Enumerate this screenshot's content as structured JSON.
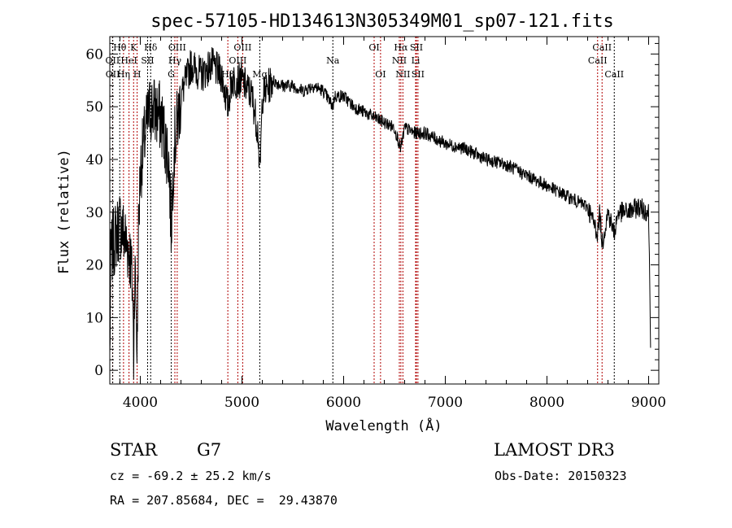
{
  "chart_data": {
    "type": "line",
    "title": "spec-57105-HD134613N305349M01_sp07-121.fits",
    "xlabel": "Wavelength (Å)",
    "ylabel": "Flux (relative)",
    "xlim": [
      3700,
      9100
    ],
    "ylim": [
      -2.6,
      63.3
    ],
    "xticks": [
      4000,
      5000,
      6000,
      7000,
      8000,
      9000
    ],
    "yticks": [
      0,
      10,
      20,
      30,
      40,
      50,
      60
    ],
    "xtick_labels": [
      "4000",
      "5000",
      "6000",
      "7000",
      "8000",
      "9000"
    ],
    "ytick_labels": [
      "0",
      "10",
      "20",
      "30",
      "40",
      "50",
      "60"
    ],
    "grid": false,
    "series": [
      {
        "name": "spectrum",
        "approximate": true,
        "x": [
          3700,
          3710,
          3750,
          3800,
          3850,
          3900,
          3925,
          3934,
          3945,
          3960,
          3969,
          3980,
          4000,
          4050,
          4100,
          4200,
          4280,
          4304,
          4330,
          4400,
          4500,
          4600,
          4700,
          4800,
          4861,
          4900,
          5000,
          5100,
          5160,
          5175,
          5190,
          5200,
          5300,
          5400,
          5500,
          5600,
          5700,
          5800,
          5894,
          5910,
          6000,
          6100,
          6200,
          6300,
          6400,
          6500,
          6563,
          6600,
          6700,
          6800,
          7000,
          7200,
          7400,
          7600,
          7800,
          8000,
          8200,
          8400,
          8498,
          8520,
          8542,
          8600,
          8662,
          8700,
          8800,
          8900,
          9000,
          9020
        ],
        "y": [
          2,
          22,
          25,
          28,
          25,
          22,
          15,
          2,
          20,
          12,
          2,
          25,
          38,
          45,
          50,
          48,
          40,
          27,
          42,
          52,
          58,
          56,
          58,
          56,
          50,
          55,
          55,
          52,
          45,
          36,
          45,
          52,
          55,
          54,
          54,
          53,
          54,
          53,
          50,
          52,
          52,
          50,
          49,
          48,
          47,
          46,
          42,
          46,
          45,
          45,
          43,
          42,
          40,
          39,
          37,
          35,
          33,
          31,
          26,
          30,
          24,
          30,
          26,
          30,
          30,
          31,
          30,
          5
        ]
      }
    ],
    "line_labels": [
      {
        "name": "Hθ",
        "wave": 3798,
        "row": 0,
        "color": "#000000"
      },
      {
        "name": "K",
        "wave": 3934,
        "row": 0,
        "color": "#b00000"
      },
      {
        "name": "Hδ",
        "wave": 4102,
        "row": 0,
        "color": "#000000"
      },
      {
        "name": "OIII",
        "wave": 4363,
        "row": 0,
        "color": "#b00000"
      },
      {
        "name": "OIII",
        "wave": 5007,
        "row": 0,
        "color": "#b00000"
      },
      {
        "name": "OI",
        "wave": 6300,
        "row": 0,
        "color": "#b00000"
      },
      {
        "name": "Hα",
        "wave": 6563,
        "row": 0,
        "color": "#b00000"
      },
      {
        "name": "SII",
        "wave": 6716,
        "row": 0,
        "color": "#b00000"
      },
      {
        "name": "CaII",
        "wave": 8542,
        "row": 0,
        "color": "#b00000"
      },
      {
        "name": "OII",
        "wave": 3727,
        "row": 1,
        "color": "#b00000"
      },
      {
        "name": "HeI",
        "wave": 3889,
        "row": 1,
        "color": "#b00000"
      },
      {
        "name": "SII",
        "wave": 4072,
        "row": 1,
        "color": "#000000"
      },
      {
        "name": "Hγ",
        "wave": 4340,
        "row": 1,
        "color": "#b00000"
      },
      {
        "name": "OIII",
        "wave": 4959,
        "row": 1,
        "color": "#b00000"
      },
      {
        "name": "Na",
        "wave": 5894,
        "row": 1,
        "color": "#000000"
      },
      {
        "name": "NII",
        "wave": 6548,
        "row": 1,
        "color": "#b00000"
      },
      {
        "name": "Li",
        "wave": 6708,
        "row": 1,
        "color": "#b00000"
      },
      {
        "name": "CaII",
        "wave": 8498,
        "row": 1,
        "color": "#b00000"
      },
      {
        "name": "OII",
        "wave": 3729,
        "row": 2,
        "color": "#000000"
      },
      {
        "name": "Hη",
        "wave": 3835,
        "row": 2,
        "color": "#b00000"
      },
      {
        "name": "H",
        "wave": 3969,
        "row": 2,
        "color": "#b00000"
      },
      {
        "name": "G",
        "wave": 4304,
        "row": 2,
        "color": "#000000"
      },
      {
        "name": "Hβ",
        "wave": 4861,
        "row": 2,
        "color": "#b00000"
      },
      {
        "name": "Mg",
        "wave": 5175,
        "row": 2,
        "color": "#000000"
      },
      {
        "name": "OI",
        "wave": 6363,
        "row": 2,
        "color": "#b00000"
      },
      {
        "name": "NII",
        "wave": 6583,
        "row": 2,
        "color": "#b00000"
      },
      {
        "name": "SII",
        "wave": 6731,
        "row": 2,
        "color": "#b00000"
      },
      {
        "name": "CaII",
        "wave": 8662,
        "row": 2,
        "color": "#000000"
      }
    ]
  },
  "info": {
    "object_class": "STAR",
    "subclass": "G7",
    "survey": "LAMOST DR3",
    "cz": "cz = -69.2 ± 25.2 km/s",
    "obs_date": "Obs-Date: 20150323",
    "coords": "RA = 207.85684, DEC =  29.43870"
  }
}
